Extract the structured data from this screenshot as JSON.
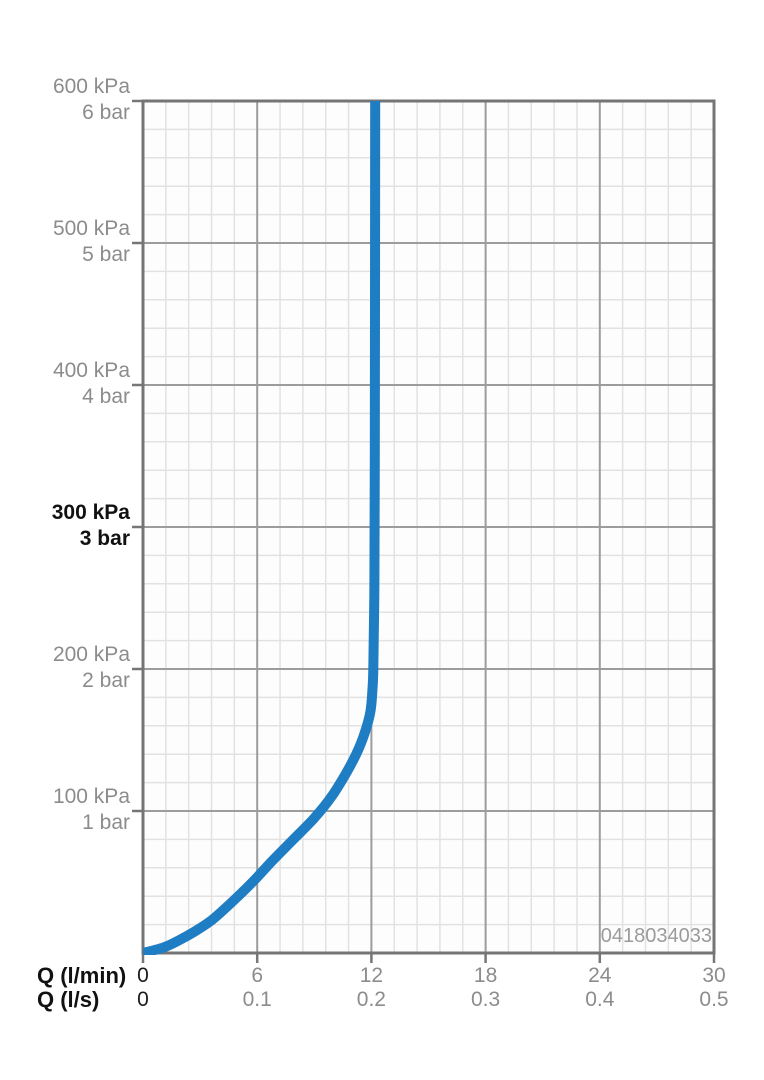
{
  "chart_data": {
    "type": "line",
    "title": "",
    "x_axis": {
      "rows": [
        {
          "label": "Q (l/min)",
          "unit": "l/min",
          "ticks": [
            "0",
            "6",
            "12",
            "18",
            "24",
            "30"
          ],
          "values": [
            0,
            6,
            12,
            18,
            24,
            30
          ]
        },
        {
          "label": "Q (l/s)",
          "unit": "l/s",
          "ticks": [
            "0",
            "0.1",
            "0.2",
            "0.3",
            "0.4",
            "0.5"
          ],
          "values": [
            0,
            0.1,
            0.2,
            0.3,
            0.4,
            0.5
          ]
        }
      ],
      "xlim_lmin": [
        0,
        30
      ],
      "minor_step_lmin": 1.2,
      "major_step_lmin": 6
    },
    "y_axis": {
      "ticks": [
        {
          "kpa": "600 kPa",
          "bar": "6 bar",
          "value_kpa": 600,
          "bold": false
        },
        {
          "kpa": "500 kPa",
          "bar": "5 bar",
          "value_kpa": 500,
          "bold": false
        },
        {
          "kpa": "400 kPa",
          "bar": "4 bar",
          "value_kpa": 400,
          "bold": false
        },
        {
          "kpa": "300 kPa",
          "bar": "3 bar",
          "value_kpa": 300,
          "bold": true
        },
        {
          "kpa": "200 kPa",
          "bar": "2 bar",
          "value_kpa": 200,
          "bold": false
        },
        {
          "kpa": "100 kPa",
          "bar": "1 bar",
          "value_kpa": 100,
          "bold": false
        }
      ],
      "ylim_kpa": [
        0,
        600
      ],
      "minor_step_kpa": 20,
      "major_step_kpa": 100,
      "highlighted_tick_kpa": 300
    },
    "series": [
      {
        "name": "flow-rate-curve",
        "color": "#1f7dc4",
        "stroke_width": 10,
        "points_kpa_lmin": [
          [
            0,
            0
          ],
          [
            4,
            1.1
          ],
          [
            9,
            1.9
          ],
          [
            15,
            2.7
          ],
          [
            22,
            3.5
          ],
          [
            30,
            4.2
          ],
          [
            40,
            5.0
          ],
          [
            52,
            5.9
          ],
          [
            65,
            6.8
          ],
          [
            80,
            7.9
          ],
          [
            95,
            9.0
          ],
          [
            110,
            9.9
          ],
          [
            125,
            10.6
          ],
          [
            140,
            11.2
          ],
          [
            155,
            11.65
          ],
          [
            170,
            11.95
          ],
          [
            185,
            12.05
          ],
          [
            200,
            12.1
          ],
          [
            250,
            12.15
          ],
          [
            350,
            12.18
          ],
          [
            600,
            12.2
          ],
          [
            640,
            12.2
          ]
        ]
      }
    ],
    "grid": true,
    "legend": null,
    "watermark": "0418034033",
    "colors": {
      "border": "#757575",
      "tick": "#777777",
      "grid_major": "#9c9c9c",
      "grid_minor": "#e2e2e2",
      "plot_background": "#fdfdfd",
      "label_grey": "#8c8c8c",
      "label_black": "#111111"
    }
  }
}
